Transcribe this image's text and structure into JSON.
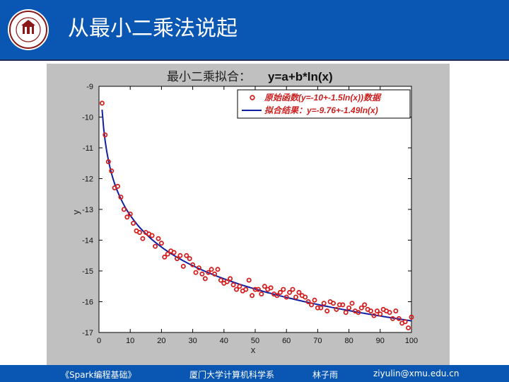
{
  "header": {
    "title": "从最小二乘法说起"
  },
  "footer": {
    "course": "《Spark编程基础》",
    "department": "厦门大学计算机科学系",
    "author": "林子雨",
    "email": "ziyulin@xmu.edu.cn"
  },
  "colors": {
    "header_bg": "#0a56b3",
    "marker": "#d42020",
    "fit_line": "#1020a0"
  },
  "chart_data": {
    "type": "scatter",
    "title_cn": "最小二乘拟合：",
    "title_formula": "y=a+b*ln(x)",
    "xlabel": "x",
    "ylabel": "y",
    "xlim": [
      0,
      100
    ],
    "ylim": [
      -17,
      -9
    ],
    "xticks": [
      0,
      10,
      20,
      30,
      40,
      50,
      60,
      70,
      80,
      90,
      100
    ],
    "yticks": [
      -9,
      -10,
      -11,
      -12,
      -13,
      -14,
      -15,
      -16,
      -17
    ],
    "legend_placement": "top-right",
    "series": [
      {
        "name": "原始函数(y=-10+-1.5ln(x))数据",
        "kind": "markers",
        "x": [
          1,
          2,
          3,
          4,
          5,
          6,
          7,
          8,
          9,
          10,
          11,
          12,
          13,
          14,
          15,
          16,
          17,
          18,
          19,
          20,
          21,
          22,
          23,
          24,
          25,
          26,
          27,
          28,
          29,
          30,
          31,
          32,
          33,
          34,
          35,
          36,
          37,
          38,
          39,
          40,
          41,
          42,
          43,
          44,
          45,
          46,
          47,
          48,
          49,
          50,
          51,
          52,
          53,
          54,
          55,
          56,
          57,
          58,
          59,
          60,
          61,
          62,
          63,
          64,
          65,
          66,
          67,
          68,
          69,
          70,
          71,
          72,
          73,
          74,
          75,
          76,
          77,
          78,
          79,
          80,
          81,
          82,
          83,
          84,
          85,
          86,
          87,
          88,
          89,
          90,
          91,
          92,
          93,
          94,
          95,
          96,
          97,
          98,
          99,
          100
        ],
        "y": [
          -9.55,
          -10.58,
          -11.45,
          -11.75,
          -12.3,
          -12.25,
          -12.6,
          -13.0,
          -13.25,
          -13.15,
          -13.45,
          -13.7,
          -13.75,
          -13.95,
          -13.75,
          -13.8,
          -13.85,
          -14.2,
          -13.95,
          -14.1,
          -14.55,
          -14.45,
          -14.35,
          -14.4,
          -14.6,
          -14.5,
          -14.85,
          -14.5,
          -14.6,
          -14.8,
          -15.05,
          -14.9,
          -15.1,
          -15.25,
          -15.05,
          -14.95,
          -15.1,
          -14.95,
          -15.3,
          -15.4,
          -15.35,
          -15.25,
          -15.45,
          -15.6,
          -15.5,
          -15.65,
          -15.6,
          -15.3,
          -15.8,
          -15.6,
          -15.6,
          -15.75,
          -15.5,
          -15.6,
          -15.55,
          -15.75,
          -15.8,
          -15.7,
          -15.6,
          -15.85,
          -15.7,
          -15.6,
          -15.85,
          -15.7,
          -15.8,
          -15.85,
          -16.0,
          -16.1,
          -15.95,
          -16.2,
          -16.2,
          -16.05,
          -16.3,
          -16.0,
          -16.05,
          -16.25,
          -16.1,
          -16.1,
          -16.35,
          -16.2,
          -16.05,
          -16.3,
          -16.35,
          -16.2,
          -16.1,
          -16.25,
          -16.3,
          -16.45,
          -16.3,
          -16.4,
          -16.25,
          -16.3,
          -16.35,
          -16.55,
          -16.3,
          -16.55,
          -16.7,
          -16.65,
          -16.85,
          -16.5
        ]
      },
      {
        "name": "拟合结果：y=-9.76+-1.49ln(x)",
        "kind": "line",
        "a": -9.76,
        "b": -1.49
      }
    ]
  }
}
